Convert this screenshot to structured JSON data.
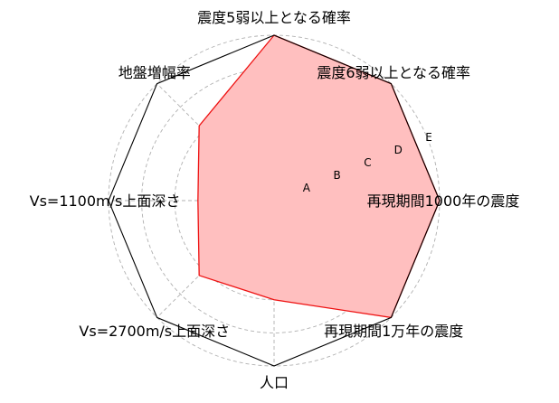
{
  "chart_data": {
    "type": "radar",
    "categories": [
      "震度5弱以上となる確率",
      "震度6弱以上となる確率",
      "再現期間1000年の震度",
      "再現期間1万年の震度",
      "人口",
      "Vs=2700m/s上面深さ",
      "Vs=1100m/s上面深さ",
      "地盤増幅率"
    ],
    "rings": [
      "A",
      "B",
      "C",
      "D",
      "E"
    ],
    "rlim": [
      0,
      5
    ],
    "values": [
      5.0,
      5.0,
      5.0,
      5.0,
      3.0,
      3.2,
      2.3,
      3.2
    ],
    "grid": true,
    "colors": {
      "fill": "#ffbfbf",
      "line": "#ee1111",
      "frame": "#000000"
    }
  }
}
